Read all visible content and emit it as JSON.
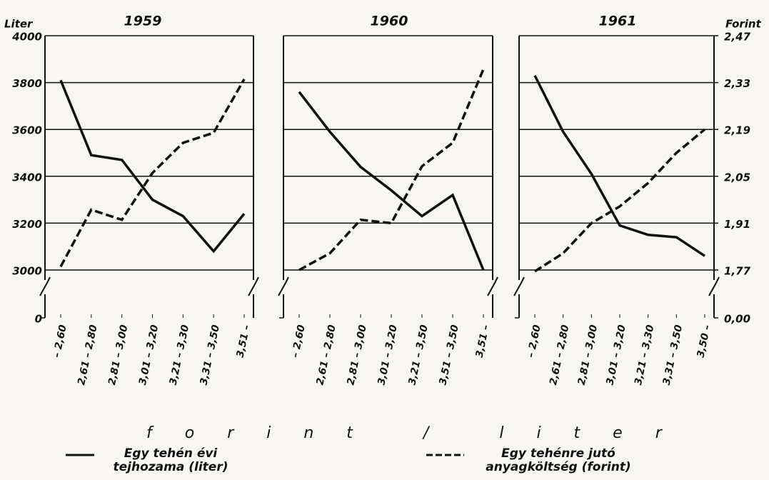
{
  "chart_data": [
    {
      "type": "line",
      "title": "1959",
      "ylabel": "Liter",
      "ytick_labels": true,
      "categories": [
        "– 2,60",
        "2,61 – 2,80",
        "2,81 – 3,00",
        "3,01 – 3,20",
        "3,21 – 3,30",
        "3,31 – 3,50",
        "3,51 –"
      ],
      "ylim": [
        0,
        4000
      ],
      "axis_break": [
        0,
        3000
      ],
      "yticks": [
        0,
        3000,
        3200,
        3400,
        3600,
        3800,
        4000
      ],
      "y2lim": [
        0,
        2.47
      ],
      "y2_axis_break": [
        0,
        1.77
      ],
      "grid": true,
      "series": [
        {
          "name": "Egy tehén évi tejhozama (liter)",
          "color": "#111111",
          "dash": "solid",
          "values": [
            3810,
            3490,
            3470,
            3300,
            3230,
            3080,
            3240
          ]
        },
        {
          "name": "Egy tehénre jutó anyagköltség (forint)",
          "color": "#111111",
          "dash": "dashed",
          "axis": "y2",
          "values": [
            1.78,
            1.95,
            1.92,
            2.06,
            2.15,
            2.18,
            2.34
          ]
        }
      ]
    },
    {
      "type": "line",
      "title": "1960",
      "categories": [
        "– 2,60",
        "2,61 – 2,80",
        "2,81 – 3,00",
        "3,01 – 3,20",
        "3,21 – 3,50",
        "3,51 – 3,50",
        "3,51 –"
      ],
      "ylim": [
        0,
        4000
      ],
      "axis_break": [
        0,
        3000
      ],
      "yticks": [
        0,
        3000,
        3200,
        3400,
        3600,
        3800,
        4000
      ],
      "y2lim": [
        0,
        2.47
      ],
      "y2_axis_break": [
        0,
        1.77
      ],
      "grid": true,
      "series": [
        {
          "color": "#111111",
          "dash": "solid",
          "values": [
            3760,
            3590,
            3440,
            3340,
            3230,
            3320,
            3000
          ]
        },
        {
          "color": "#111111",
          "dash": "dashed",
          "axis": "y2",
          "values": [
            1.77,
            1.82,
            1.92,
            1.91,
            2.08,
            2.15,
            2.37
          ]
        }
      ]
    },
    {
      "type": "line",
      "title": "1961",
      "y2label": "Forint",
      "categories": [
        "– 2,60",
        "2,61 – 2,80",
        "2,81 – 3,00",
        "3,01 – 3,20",
        "3,21 – 3,30",
        "3,31 – 3,50",
        "3,50 –"
      ],
      "ylim": [
        0,
        4000
      ],
      "axis_break": [
        0,
        3000
      ],
      "yticks": [
        0,
        3000,
        3200,
        3400,
        3600,
        3800,
        4000
      ],
      "y2lim": [
        0,
        2.47
      ],
      "y2_axis_break": [
        0,
        1.77
      ],
      "grid": true,
      "y2ticks": [
        {
          "value": 0,
          "label": "0,00"
        },
        {
          "value": 1.77,
          "label": "1,77"
        },
        {
          "value": 1.91,
          "label": "1,91"
        },
        {
          "value": 2.05,
          "label": "2,05"
        },
        {
          "value": 2.19,
          "label": "2,19"
        },
        {
          "value": 2.33,
          "label": "2,33"
        },
        {
          "value": 2.47,
          "label": "2,47"
        }
      ],
      "series": [
        {
          "color": "#111111",
          "dash": "solid",
          "values": [
            3830,
            3590,
            3410,
            3190,
            3150,
            3140,
            3060
          ]
        },
        {
          "color": "#111111",
          "dash": "dashed",
          "axis": "y2",
          "values": [
            1.72,
            1.82,
            1.91,
            1.96,
            2.03,
            2.12,
            2.19
          ]
        }
      ]
    }
  ],
  "xlabel": "forint / liter"
}
